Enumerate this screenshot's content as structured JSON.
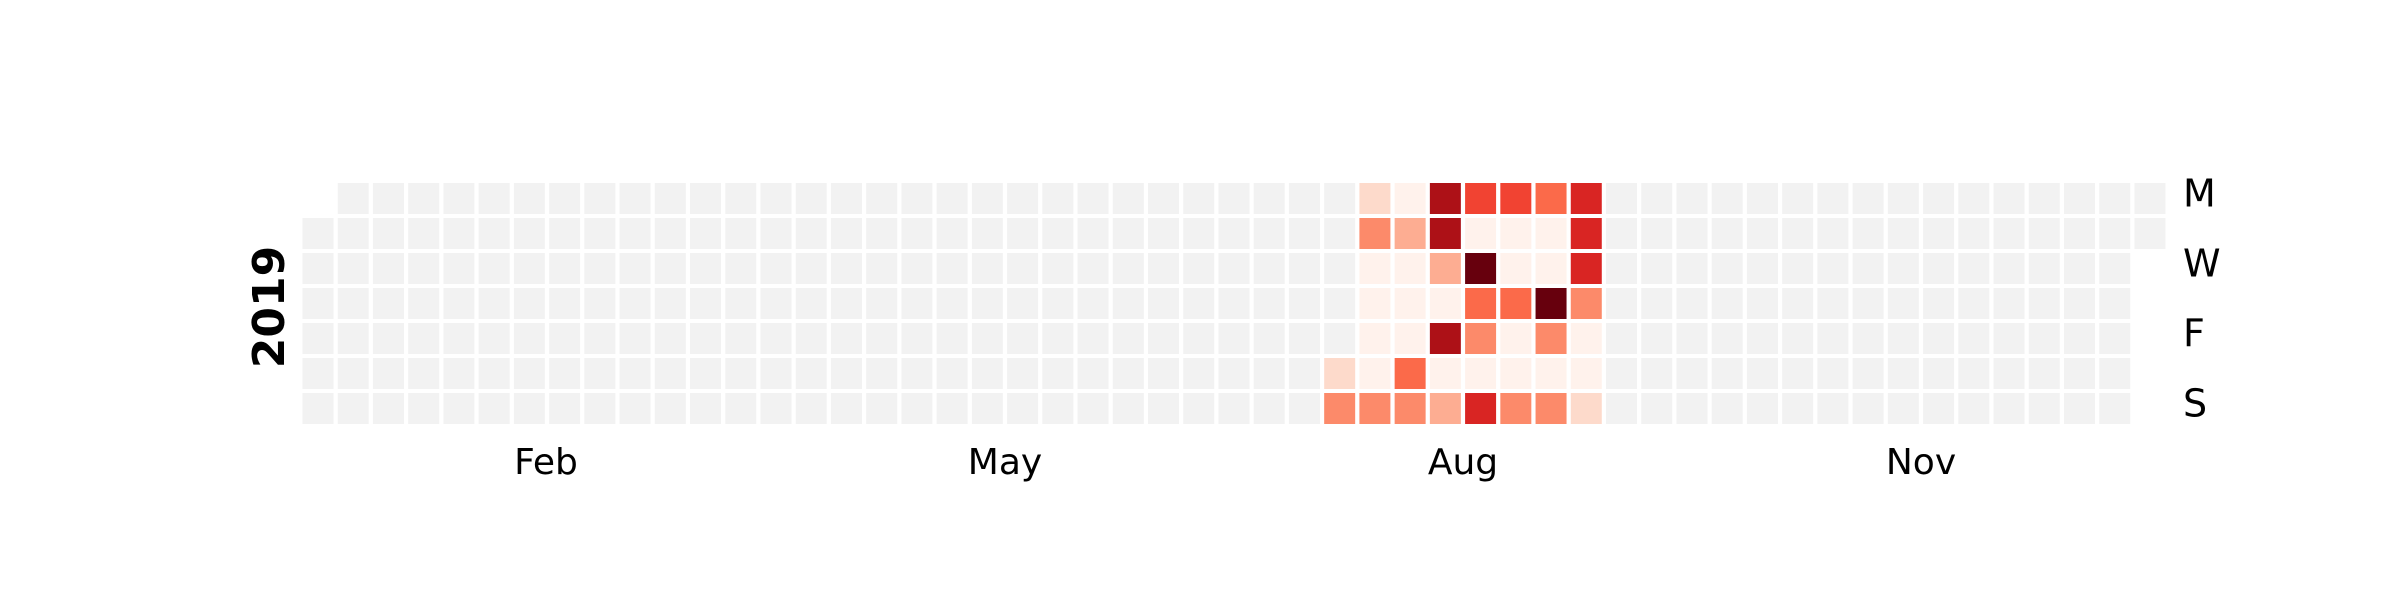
{
  "chart_data": {
    "type": "heatmap",
    "title": "",
    "year": 2019,
    "year_label": "2019",
    "colormap": "Reds",
    "empty_color": "#f2f2f2",
    "grid": false,
    "max_level": 9,
    "month_labels": [
      "Feb",
      "May",
      "Aug",
      "Nov"
    ],
    "day_labels": [
      "M",
      "W",
      "F",
      "S"
    ],
    "levels_note": "0 = no activity, 1..9 = increasing intensity (light to dark red)",
    "active_weeks": [
      {
        "week": 29,
        "levels": [
          0,
          0,
          0,
          0,
          0,
          2,
          4
        ]
      },
      {
        "week": 30,
        "levels": [
          2,
          4,
          1,
          1,
          1,
          1,
          4
        ]
      },
      {
        "week": 31,
        "levels": [
          1,
          3,
          1,
          1,
          1,
          5,
          4
        ]
      },
      {
        "week": 32,
        "levels": [
          8,
          8,
          3,
          1,
          8,
          1,
          3
        ]
      },
      {
        "week": 33,
        "levels": [
          6,
          1,
          9,
          5,
          4,
          1,
          7
        ]
      },
      {
        "week": 34,
        "levels": [
          6,
          1,
          1,
          5,
          1,
          1,
          4
        ]
      },
      {
        "week": 35,
        "levels": [
          5,
          1,
          1,
          9,
          4,
          1,
          4
        ]
      },
      {
        "week": 36,
        "levels": [
          7,
          7,
          7,
          4,
          1,
          1,
          2
        ]
      }
    ]
  }
}
